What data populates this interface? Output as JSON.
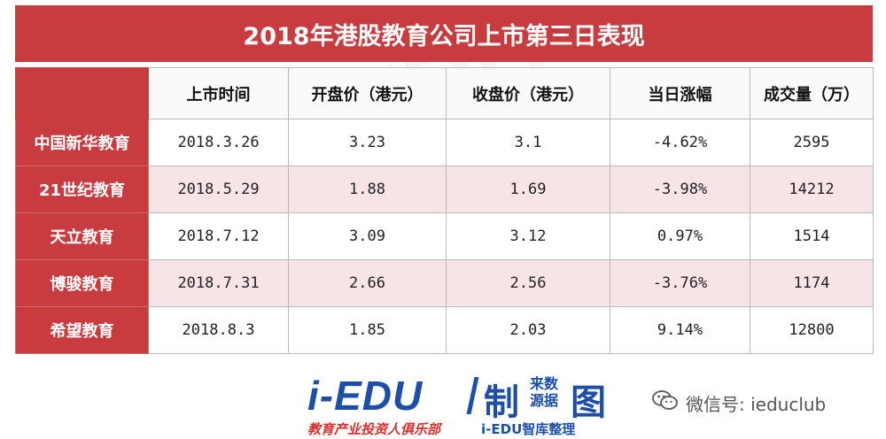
{
  "title": "2018年港股教育公司上市第三日表现",
  "table": {
    "headers": [
      "上市时间",
      "开盘价（港元）",
      "收盘价（港元）",
      "当日涨幅",
      "成交量（万）"
    ],
    "rows": [
      {
        "name": "中国新华教育",
        "date": "2018.3.26",
        "open": "3.23",
        "close": "3.1",
        "change": "-4.62%",
        "volume": "2595"
      },
      {
        "name": "21世纪教育",
        "date": "2018.5.29",
        "open": "1.88",
        "close": "1.69",
        "change": "-3.98%",
        "volume": "14212"
      },
      {
        "name": "天立教育",
        "date": "2018.7.12",
        "open": "3.09",
        "close": "3.12",
        "change": "0.97%",
        "volume": "1514"
      },
      {
        "name": "博骏教育",
        "date": "2018.7.31",
        "open": "2.66",
        "close": "2.56",
        "change": "-3.76%",
        "volume": "1174"
      },
      {
        "name": "希望教育",
        "date": "2018.8.3",
        "open": "1.85",
        "close": "2.03",
        "change": "9.14%",
        "volume": "12800"
      }
    ]
  },
  "footer": {
    "brand": "i-EDU",
    "zhi": "制",
    "small_top": "来数",
    "small_bottom": "源据",
    "tu": "图",
    "sub_left": "教育产业投资人俱乐部",
    "sub_right": "i-EDU智库整理",
    "wechat_text": "微信号: ieduclub"
  },
  "colors": {
    "accent": "#c83c3f",
    "row_alt": "#f6e4e6",
    "brand_blue": "#1e4fa8",
    "brand_red": "#d7302b"
  },
  "icons": {
    "wechat": "wechat-icon"
  }
}
